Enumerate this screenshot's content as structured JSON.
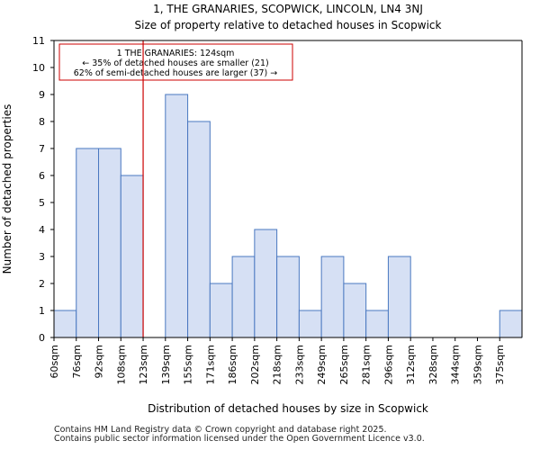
{
  "chart_data": {
    "type": "bar",
    "title_line1": "1, THE GRANARIES, SCOPWICK, LINCOLN, LN4 3NJ",
    "title_line2": "Size of property relative to detached houses in Scopwick",
    "xlabel": "Distribution of detached houses by size in Scopwick",
    "ylabel": "Number of detached properties",
    "categories": [
      "60sqm",
      "76sqm",
      "92sqm",
      "108sqm",
      "123sqm",
      "139sqm",
      "155sqm",
      "171sqm",
      "186sqm",
      "202sqm",
      "218sqm",
      "233sqm",
      "249sqm",
      "265sqm",
      "281sqm",
      "296sqm",
      "312sqm",
      "328sqm",
      "344sqm",
      "359sqm",
      "375sqm"
    ],
    "values": [
      1,
      7,
      7,
      6,
      0,
      9,
      8,
      2,
      3,
      4,
      3,
      1,
      3,
      2,
      1,
      3,
      0,
      0,
      0,
      0,
      1
    ],
    "ylim": [
      0,
      11
    ],
    "yticks": [
      0,
      1,
      2,
      3,
      4,
      5,
      6,
      7,
      8,
      9,
      10,
      11
    ],
    "grid": false,
    "bar_color": "#d6e0f4",
    "bar_edge_color": "#4a78c0",
    "marker": {
      "value_bin_edge": 4,
      "color": "#cc0000",
      "annotation": [
        "1 THE GRANARIES: 124sqm",
        "← 35% of detached houses are smaller (21)",
        "62% of semi-detached houses are larger (37) →"
      ]
    }
  },
  "footer": {
    "line1": "Contains HM Land Registry data © Crown copyright and database right 2025.",
    "line2": "Contains public sector information licensed under the Open Government Licence v3.0."
  }
}
